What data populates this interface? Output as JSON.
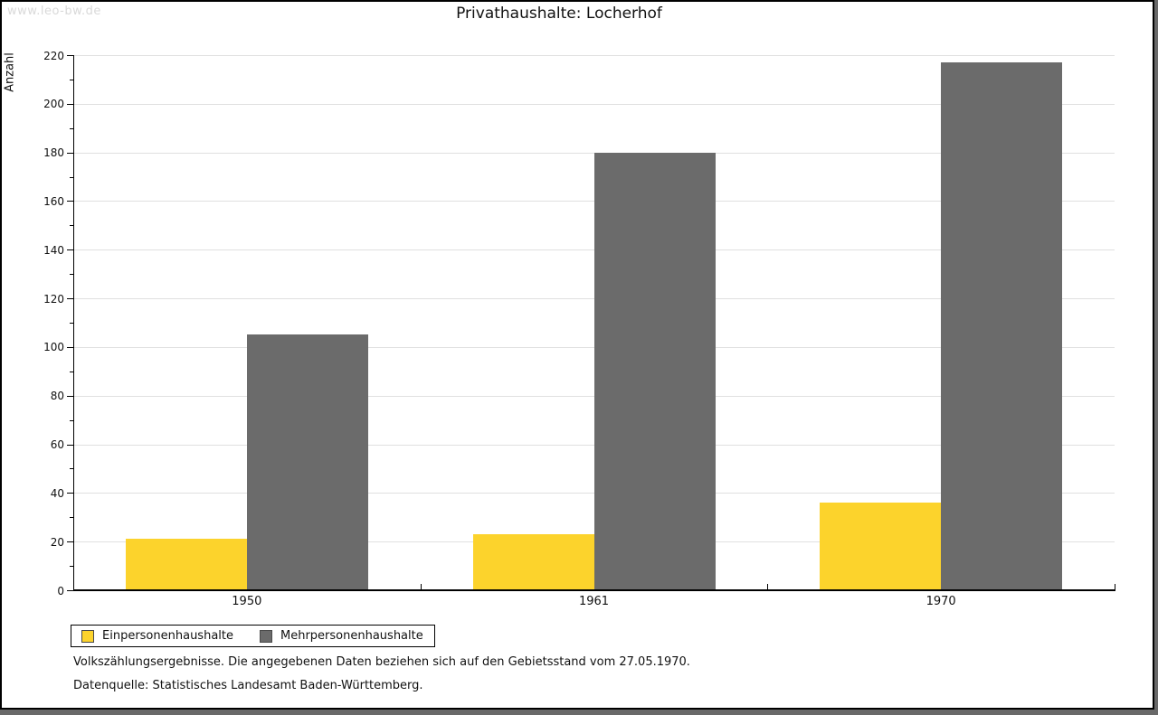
{
  "watermark": "www.leo-bw.de",
  "title": "Privathaushalte: Locherhof",
  "footer": {
    "line1": "Volkszählungsergebnisse. Die angegebenen Daten beziehen sich auf den Gebietsstand vom 27.05.1970.",
    "line2": "Datenquelle: Statistisches Landesamt Baden-Württemberg."
  },
  "colors": {
    "series_einpersonen": "#fcd32c",
    "series_mehrpersonen": "#6b6b6b",
    "gridline": "#e0e0e0",
    "axis": "#000000",
    "watermark_text": "#d9d9d9",
    "page_shadow": "#696969",
    "page_background": "#ffffff"
  },
  "chart_data": {
    "type": "bar",
    "title": "Privathaushalte: Locherhof",
    "ylabel": "Anzahl",
    "xlabel": "",
    "categories": [
      "1950",
      "1961",
      "1970"
    ],
    "series": [
      {
        "name": "Einpersonenhaushalte",
        "color": "#fcd32c",
        "values": [
          21,
          23,
          36
        ]
      },
      {
        "name": "Mehrpersonenhaushalte",
        "color": "#6b6b6b",
        "values": [
          105,
          180,
          217
        ]
      }
    ],
    "ylim": [
      0,
      220
    ],
    "yticks": [
      0,
      20,
      40,
      60,
      80,
      100,
      120,
      140,
      160,
      180,
      200,
      220
    ],
    "ytick_minor_step": 10,
    "grid": true,
    "legend_position": "bottom-left"
  }
}
